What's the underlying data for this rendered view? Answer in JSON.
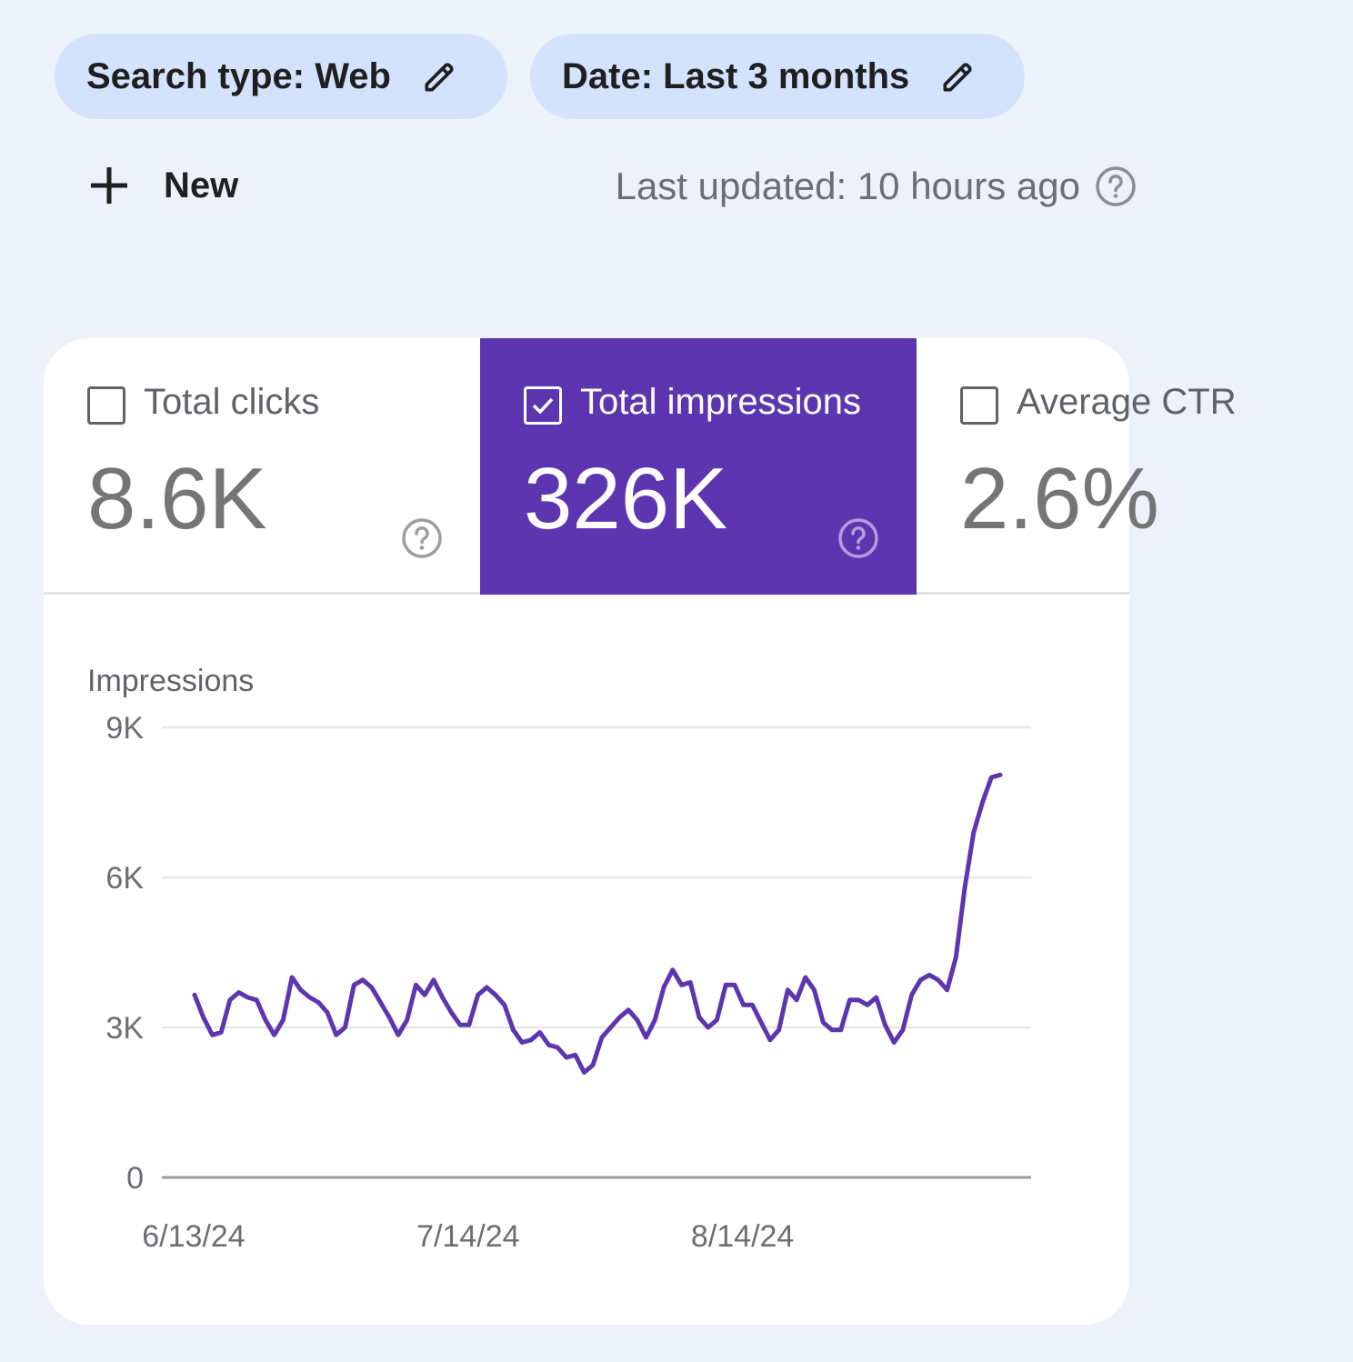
{
  "filters": {
    "search_type": "Search type: Web",
    "date": "Date: Last 3 months"
  },
  "new_button": "New",
  "last_updated": "Last updated: 10 hours ago",
  "metrics": [
    {
      "label": "Total clicks",
      "value": "8.6K",
      "checked": false
    },
    {
      "label": "Total impressions",
      "value": "326K",
      "checked": true
    },
    {
      "label": "Average CTR",
      "value": "2.6%",
      "checked": false
    }
  ],
  "colors": {
    "accent": "#5e35b1",
    "line": "#5e35b1",
    "chip_bg": "#d3e3fd",
    "page_bg": "#edf1fa"
  },
  "chart_data": {
    "type": "line",
    "ylabel": "Impressions",
    "ylim": [
      0,
      9000
    ],
    "y_ticks": [
      {
        "value": 9000,
        "label": "9K"
      },
      {
        "value": 6000,
        "label": "6K"
      },
      {
        "value": 3000,
        "label": "3K"
      },
      {
        "value": 0,
        "label": "0"
      }
    ],
    "x_ticks": [
      {
        "index": 0,
        "label": "6/13/24"
      },
      {
        "index": 31,
        "label": "7/14/24"
      },
      {
        "index": 62,
        "label": "8/14/24"
      }
    ],
    "grid": true,
    "series": [
      {
        "values": [
          3650,
          3200,
          2850,
          2900,
          3550,
          3700,
          3600,
          3550,
          3150,
          2850,
          3150,
          4000,
          3750,
          3600,
          3500,
          3300,
          2850,
          3000,
          3850,
          3950,
          3800,
          3500,
          3200,
          2850,
          3150,
          3850,
          3650,
          3950,
          3600,
          3300,
          3050,
          3050,
          3650,
          3800,
          3650,
          3450,
          2950,
          2700,
          2750,
          2900,
          2650,
          2600,
          2400,
          2450,
          2100,
          2250,
          2800,
          3000,
          3200,
          3350,
          3150,
          2800,
          3150,
          3800,
          4150,
          3850,
          3900,
          3200,
          3000,
          3150,
          3850,
          3850,
          3450,
          3450,
          3100,
          2750,
          2950,
          3750,
          3550,
          4000,
          3750,
          3100,
          2950,
          2950,
          3550,
          3550,
          3450,
          3600,
          3050,
          2700,
          2950,
          3650,
          3950,
          4050,
          3950,
          3750,
          4400,
          5800,
          6900,
          7500,
          8000,
          8050
        ]
      }
    ]
  }
}
